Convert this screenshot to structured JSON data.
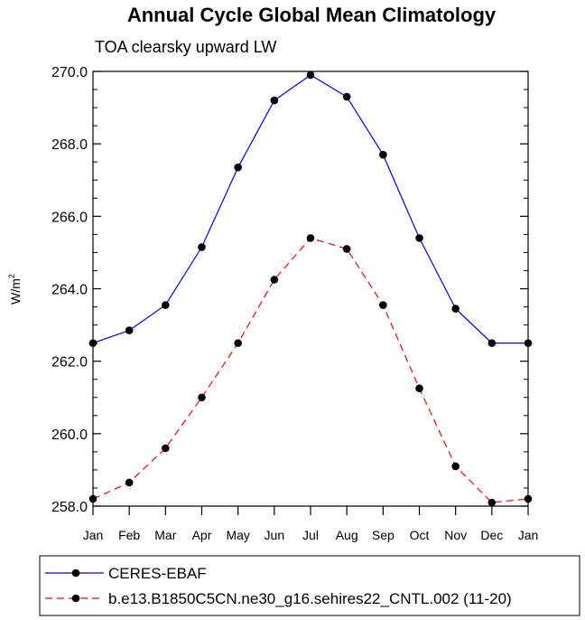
{
  "chart_data": {
    "type": "line",
    "title": "Annual Cycle Global Mean Climatology",
    "subtitle": "TOA clearsky upward LW",
    "ylabel_base": "W/m",
    "ylabel_sup": "2",
    "xlabel": "",
    "categories": [
      "Jan",
      "Feb",
      "Mar",
      "Apr",
      "May",
      "Jun",
      "Jul",
      "Aug",
      "Sep",
      "Oct",
      "Nov",
      "Dec",
      "Jan"
    ],
    "ylim": [
      258.0,
      270.0
    ],
    "yticks": [
      "258.0",
      "260.0",
      "262.0",
      "264.0",
      "266.0",
      "268.0",
      "270.0"
    ],
    "ytick_values": [
      258,
      260,
      262,
      264,
      266,
      268,
      270
    ],
    "grid": false,
    "legend_position": "bottom",
    "series": [
      {
        "name": "CERES-EBAF",
        "color": "#0000ff",
        "dash": "solid",
        "values": [
          262.5,
          262.85,
          263.55,
          265.15,
          267.35,
          269.2,
          269.9,
          269.3,
          267.7,
          265.4,
          263.45,
          262.5,
          262.5
        ]
      },
      {
        "name": "b.e13.B1850C5CN.ne30_g16.sehires22_CNTL.002 (11-20)",
        "color": "#ff0000",
        "dash": "dashed",
        "values": [
          258.2,
          258.65,
          259.6,
          261.0,
          262.5,
          264.25,
          265.4,
          265.1,
          263.55,
          261.25,
          259.1,
          258.1,
          258.2
        ]
      }
    ]
  }
}
